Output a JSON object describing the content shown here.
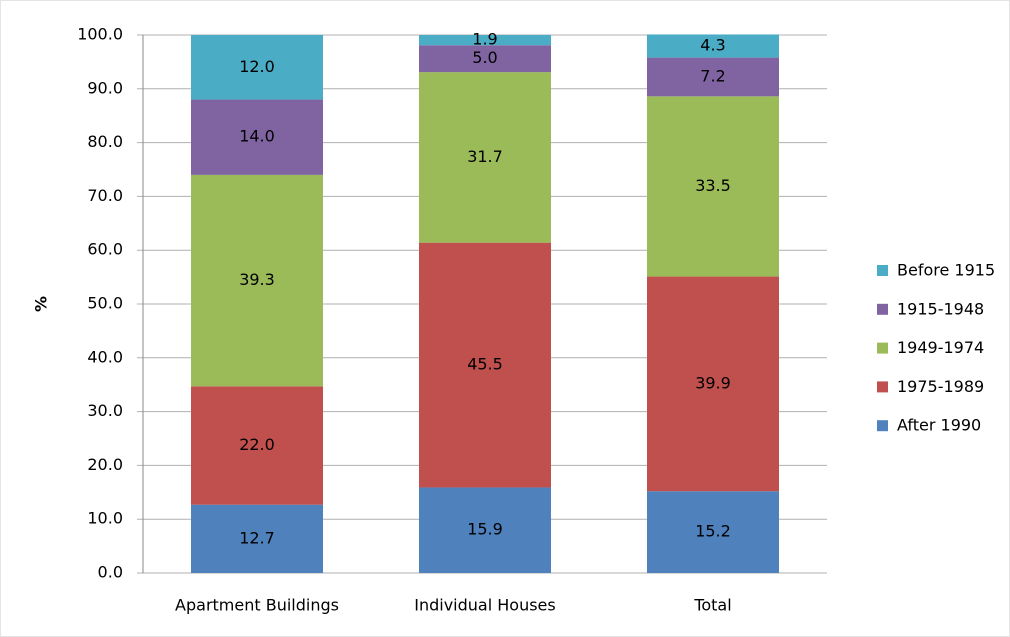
{
  "chart_data": {
    "type": "stacked_bar",
    "y_label": "%",
    "categories": [
      "Apartment Buildings",
      "Individual Houses",
      "Total"
    ],
    "series": [
      {
        "name": "After 1990",
        "color": "#4f81bd",
        "values": [
          12.7,
          15.9,
          15.2
        ],
        "value_labels": [
          "12.7",
          "15.9",
          "15.2"
        ]
      },
      {
        "name": "1975-1989",
        "color": "#c0504d",
        "values": [
          22.0,
          45.5,
          39.9
        ],
        "value_labels": [
          "22.0",
          "45.5",
          "39.9"
        ]
      },
      {
        "name": "1949-1974",
        "color": "#9bbb59",
        "values": [
          39.3,
          31.7,
          33.5
        ],
        "value_labels": [
          "39.3",
          "31.7",
          "33.5"
        ]
      },
      {
        "name": "1915-1948",
        "color": "#8064a2",
        "values": [
          14.0,
          5.0,
          7.2
        ],
        "value_labels": [
          "14.0",
          "5.0",
          "7.2"
        ]
      },
      {
        "name": "Before 1915",
        "color": "#4bacc6",
        "values": [
          12.0,
          1.9,
          4.3
        ],
        "value_labels": [
          "12.0",
          "1.9",
          "4.3"
        ]
      }
    ],
    "ylim": [
      0,
      100
    ],
    "yticks": [
      {
        "value": 0,
        "label": "0.0"
      },
      {
        "value": 10,
        "label": "10.0"
      },
      {
        "value": 20,
        "label": "20.0"
      },
      {
        "value": 30,
        "label": "30.0"
      },
      {
        "value": 40,
        "label": "40.0"
      },
      {
        "value": 50,
        "label": "50.0"
      },
      {
        "value": 60,
        "label": "60.0"
      },
      {
        "value": 70,
        "label": "70.0"
      },
      {
        "value": 80,
        "label": "80.0"
      },
      {
        "value": 90,
        "label": "90.0"
      },
      {
        "value": 100,
        "label": "100.0"
      }
    ],
    "grid": true,
    "legend": "right"
  }
}
